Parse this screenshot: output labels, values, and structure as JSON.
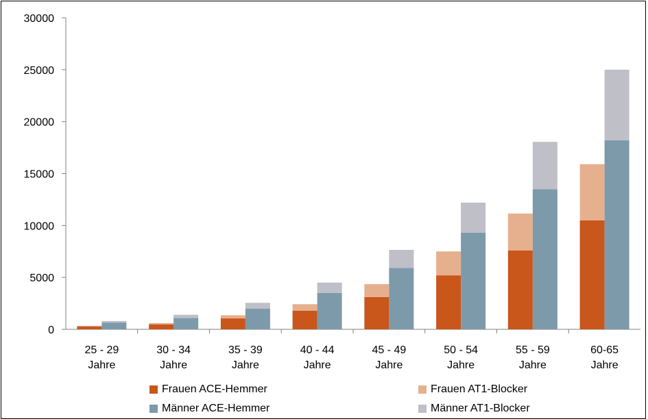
{
  "chart_data": {
    "type": "bar",
    "stacked": true,
    "categories": [
      "25 - 29 Jahre",
      "30 - 34 Jahre",
      "35 - 39 Jahre",
      "40 - 44 Jahre",
      "45 - 49 Jahre",
      "50 - 54 Jahre",
      "55 - 59 Jahre",
      "60-65 Jahre"
    ],
    "category_lines": [
      [
        "25 - 29",
        "Jahre"
      ],
      [
        "30 - 34",
        "Jahre"
      ],
      [
        "35 - 39",
        "Jahre"
      ],
      [
        "40 - 44",
        "Jahre"
      ],
      [
        "45 - 49",
        "Jahre"
      ],
      [
        "50 - 54",
        "Jahre"
      ],
      [
        "55 - 59",
        "Jahre"
      ],
      [
        "60-65",
        "Jahre"
      ]
    ],
    "series": [
      {
        "name": "Frauen ACE-Hemmer",
        "stack": "Frauen",
        "color": "#c9561b",
        "values": [
          280,
          480,
          1050,
          1800,
          3100,
          5200,
          7600,
          10500
        ]
      },
      {
        "name": "Frauen AT1-Blocker",
        "stack": "Frauen",
        "color": "#e6b08e",
        "values": [
          60,
          120,
          300,
          620,
          1250,
          2300,
          3550,
          5400
        ]
      },
      {
        "name": "Männer ACE-Hemmer",
        "stack": "Männer",
        "color": "#7d9aab",
        "values": [
          650,
          1100,
          2000,
          3500,
          5900,
          9300,
          13500,
          18200
        ]
      },
      {
        "name": "Männer AT1-Blocker",
        "stack": "Männer",
        "color": "#bfbfc8",
        "values": [
          150,
          300,
          550,
          1000,
          1750,
          2900,
          4550,
          6800
        ]
      }
    ],
    "title": "",
    "xlabel": "",
    "ylabel": "",
    "ylim": [
      0,
      30000
    ],
    "yticks": [
      "0",
      "5000",
      "10000",
      "15000",
      "20000",
      "25000",
      "30000"
    ],
    "grid": false,
    "legend_position": "bottom"
  }
}
